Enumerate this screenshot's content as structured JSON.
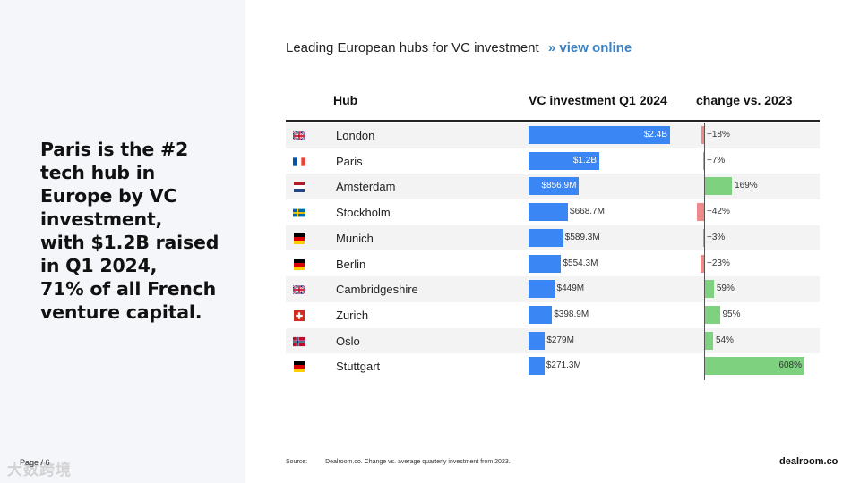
{
  "headline_lines": [
    "Paris is the #2",
    "tech hub in",
    "Europe by VC",
    "investment,",
    "with $1.2B raised",
    "in Q1 2024,",
    "71% of all French",
    "venture capital."
  ],
  "footer": {
    "page": "Page / 6",
    "watermark": "大数跨境",
    "source_label": "Source:",
    "source_text": "Dealroom.co. Change vs. average quarterly investment from 2023.",
    "brand": "dealroom.co"
  },
  "chart_data": {
    "type": "table",
    "title": "Leading European hubs for VC investment",
    "link_text": "»  view online",
    "columns": [
      "Hub",
      "VC investment Q1 2024",
      "change vs. 2023"
    ],
    "colors": {
      "investment": "#3b86f5",
      "positive": "#7ed17f",
      "negative": "#ee8a8a"
    },
    "rows": [
      {
        "flag": "uk-flag",
        "hub": "London",
        "investment_m": 2400,
        "investment_label": "$2.4B",
        "change_pct": -18,
        "change_label": "−18%"
      },
      {
        "flag": "france-flag",
        "hub": "Paris",
        "investment_m": 1200,
        "investment_label": "$1.2B",
        "change_pct": -7,
        "change_label": "−7%"
      },
      {
        "flag": "netherlands-flag",
        "hub": "Amsterdam",
        "investment_m": 856.9,
        "investment_label": "$856.9M",
        "change_pct": 169,
        "change_label": "169%"
      },
      {
        "flag": "sweden-flag",
        "hub": "Stockholm",
        "investment_m": 668.7,
        "investment_label": "$668.7M",
        "change_pct": -42,
        "change_label": "−42%"
      },
      {
        "flag": "germany-flag",
        "hub": "Munich",
        "investment_m": 589.3,
        "investment_label": "$589.3M",
        "change_pct": -3,
        "change_label": "−3%"
      },
      {
        "flag": "germany-flag",
        "hub": "Berlin",
        "investment_m": 554.3,
        "investment_label": "$554.3M",
        "change_pct": -23,
        "change_label": "−23%"
      },
      {
        "flag": "uk-flag",
        "hub": "Cambridgeshire",
        "investment_m": 449,
        "investment_label": "$449M",
        "change_pct": 59,
        "change_label": "59%"
      },
      {
        "flag": "switzerland-flag",
        "hub": "Zurich",
        "investment_m": 398.9,
        "investment_label": "$398.9M",
        "change_pct": 95,
        "change_label": "95%"
      },
      {
        "flag": "norway-flag",
        "hub": "Oslo",
        "investment_m": 279,
        "investment_label": "$279M",
        "change_pct": 54,
        "change_label": "54%"
      },
      {
        "flag": "germany-flag",
        "hub": "Stuttgart",
        "investment_m": 271.3,
        "investment_label": "$271.3M",
        "change_pct": 608,
        "change_label": "608%"
      }
    ]
  }
}
